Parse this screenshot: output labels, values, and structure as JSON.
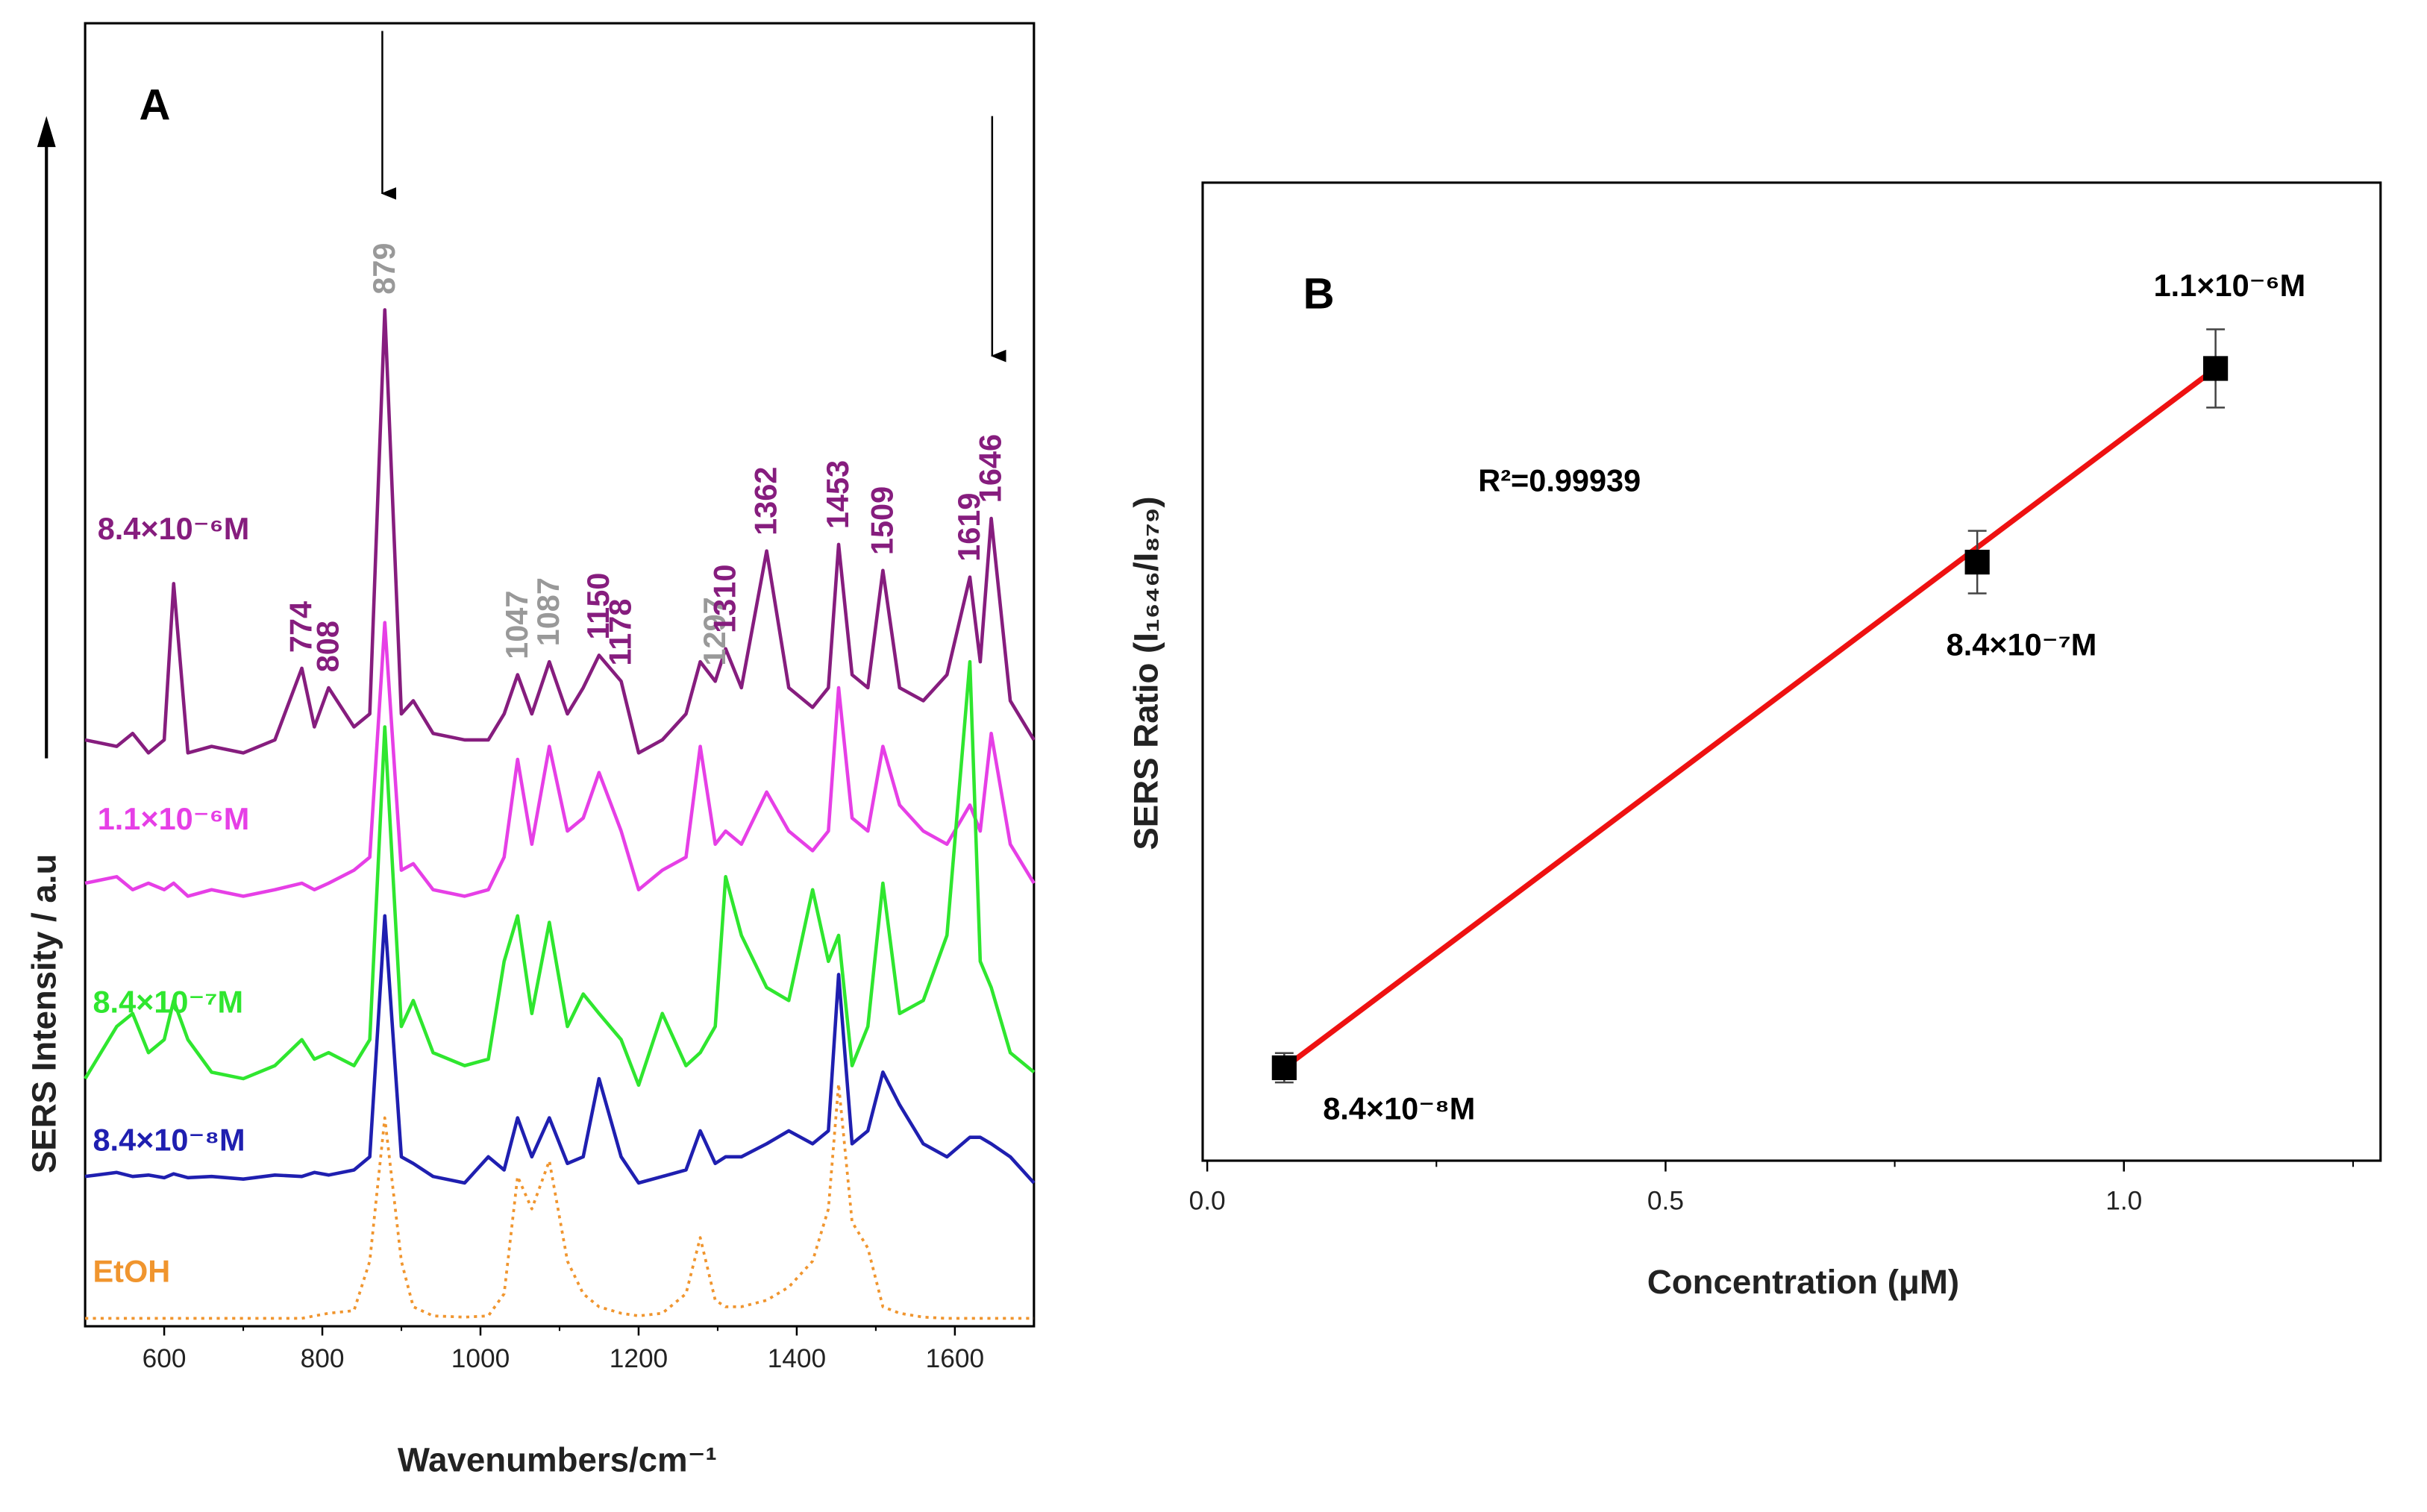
{
  "chart_data": [
    {
      "type": "line",
      "panel": "A",
      "xlabel": "Wavenumbers/cm⁻¹",
      "ylabel": "SERS Intensity / a.u",
      "xlim": [
        500,
        1700
      ],
      "xticks": [
        600,
        800,
        1000,
        1200,
        1400,
        1600
      ],
      "ylim": [
        0,
        100
      ],
      "x": [
        500,
        540,
        560,
        580,
        600,
        612,
        630,
        660,
        700,
        740,
        774,
        790,
        808,
        840,
        860,
        879,
        900,
        915,
        940,
        980,
        1010,
        1030,
        1047,
        1065,
        1087,
        1110,
        1130,
        1150,
        1178,
        1200,
        1230,
        1260,
        1278,
        1297,
        1310,
        1330,
        1362,
        1390,
        1420,
        1440,
        1453,
        1470,
        1490,
        1509,
        1530,
        1560,
        1590,
        1619,
        1632,
        1646,
        1670,
        1700
      ],
      "series": [
        {
          "name": "8.4×10⁻⁶M",
          "color": "#861d7e",
          "dash": "solid",
          "values": [
            45,
            44.5,
            45.5,
            44,
            45,
            57,
            44,
            44.5,
            44,
            45,
            50.5,
            46,
            49,
            46,
            47,
            78,
            47,
            48,
            45.5,
            45,
            45,
            47,
            50,
            47,
            51,
            47,
            49,
            51.5,
            49.5,
            44,
            45,
            47,
            51,
            49.5,
            52,
            49,
            59.5,
            49,
            47.5,
            49,
            60,
            50,
            49,
            58,
            49,
            48,
            50,
            57.5,
            51,
            62,
            48,
            45
          ]
        },
        {
          "name": "1.1×10⁻⁶M",
          "color": "#e63fe6",
          "dash": "solid",
          "values": [
            34,
            34.5,
            33.5,
            34,
            33.5,
            34,
            33,
            33.5,
            33,
            33.5,
            34,
            33.5,
            34,
            35,
            36,
            54,
            35,
            35.5,
            33.5,
            33,
            33.5,
            36,
            43.5,
            37,
            44.5,
            38,
            39,
            42.5,
            38,
            33.5,
            35,
            36,
            44.5,
            37,
            38,
            37,
            41,
            38,
            36.5,
            38,
            49,
            39,
            38,
            44.5,
            40,
            38,
            37,
            40,
            38,
            45.5,
            37,
            34
          ]
        },
        {
          "name": "8.4×10⁻⁷M",
          "color": "#2fe62f",
          "dash": "solid",
          "values": [
            19,
            23,
            24,
            21,
            22,
            25,
            22,
            19.5,
            19,
            20,
            22,
            20.5,
            21,
            20,
            22,
            46,
            23,
            25,
            21,
            20,
            20.5,
            28,
            31.5,
            24,
            31,
            23,
            25.5,
            24,
            22,
            18.5,
            24,
            20,
            21,
            23,
            34.5,
            30,
            26,
            25,
            33.5,
            28,
            30,
            20,
            23,
            34,
            24,
            25,
            30,
            51,
            28,
            26,
            21,
            19.5
          ]
        },
        {
          "name": "8.4×10⁻⁸M",
          "color": "#1f1fb0",
          "dash": "solid",
          "values": [
            11.5,
            11.8,
            11.5,
            11.6,
            11.4,
            11.7,
            11.4,
            11.5,
            11.3,
            11.6,
            11.5,
            11.8,
            11.6,
            12,
            13,
            31.5,
            13,
            12.5,
            11.5,
            11,
            13,
            12,
            16,
            13,
            16,
            12.5,
            13,
            19,
            13,
            11,
            11.5,
            12,
            15,
            12.5,
            13,
            13,
            14,
            15,
            14,
            15,
            27,
            14,
            15,
            19.5,
            17,
            14,
            13,
            14.5,
            14.5,
            14,
            13,
            11
          ]
        },
        {
          "name": "EtOH",
          "color": "#f0952e",
          "dash": "dotted",
          "values": [
            0.6,
            0.6,
            0.6,
            0.6,
            0.6,
            0.6,
            0.6,
            0.6,
            0.6,
            0.6,
            0.6,
            0.8,
            1,
            1.2,
            5,
            16,
            5,
            1.5,
            0.8,
            0.7,
            0.8,
            2.5,
            11.5,
            9,
            12.7,
            5,
            2.5,
            1.5,
            1,
            0.8,
            1,
            2.5,
            6.8,
            2,
            1.5,
            1.5,
            2,
            3,
            5,
            9,
            18.6,
            8,
            6,
            1.5,
            1,
            0.7,
            0.6,
            0.6,
            0.6,
            0.6,
            0.6,
            0.6
          ]
        }
      ],
      "peak_labels": [
        774,
        808,
        879,
        1047,
        1087,
        1150,
        1178,
        1297,
        1310,
        1362,
        1453,
        1509,
        1619,
        1646
      ],
      "peak_label_colors": [
        "#861d7e",
        "#861d7e",
        "#999999",
        "#999999",
        "#999999",
        "#861d7e",
        "#861d7e",
        "#999999",
        "#861d7e",
        "#861d7e",
        "#861d7e",
        "#861d7e",
        "#861d7e",
        "#861d7e"
      ]
    },
    {
      "type": "scatter",
      "panel": "B",
      "xlabel": "Concentration (μM)",
      "ylabel": "SERS Ratio (I₁₆₄₆/I₈₇₉)",
      "xlim": [
        -0.005,
        1.28
      ],
      "xticks": [
        {
          "value": 0,
          "label": "0.0"
        },
        0.5,
        {
          "value": 1,
          "label": "1.0"
        }
      ],
      "xticks_minor": [
        0.25,
        0.75,
        1.25
      ],
      "ylim": [
        0,
        100
      ],
      "x": [
        0.084,
        0.84,
        1.1
      ],
      "y": [
        9.5,
        61.2,
        81
      ],
      "errors": [
        1.5,
        3.2,
        4
      ],
      "color": "#000000",
      "point_labels": [
        "8.4×10⁻⁸M",
        "8.4×10⁻⁷M",
        "1.1×10⁻⁶M"
      ],
      "fit": {
        "x": [
          0.084,
          1.1
        ],
        "y": [
          9.5,
          81
        ],
        "color": "#ee1111"
      },
      "annotation": "R²=0.99939"
    }
  ]
}
